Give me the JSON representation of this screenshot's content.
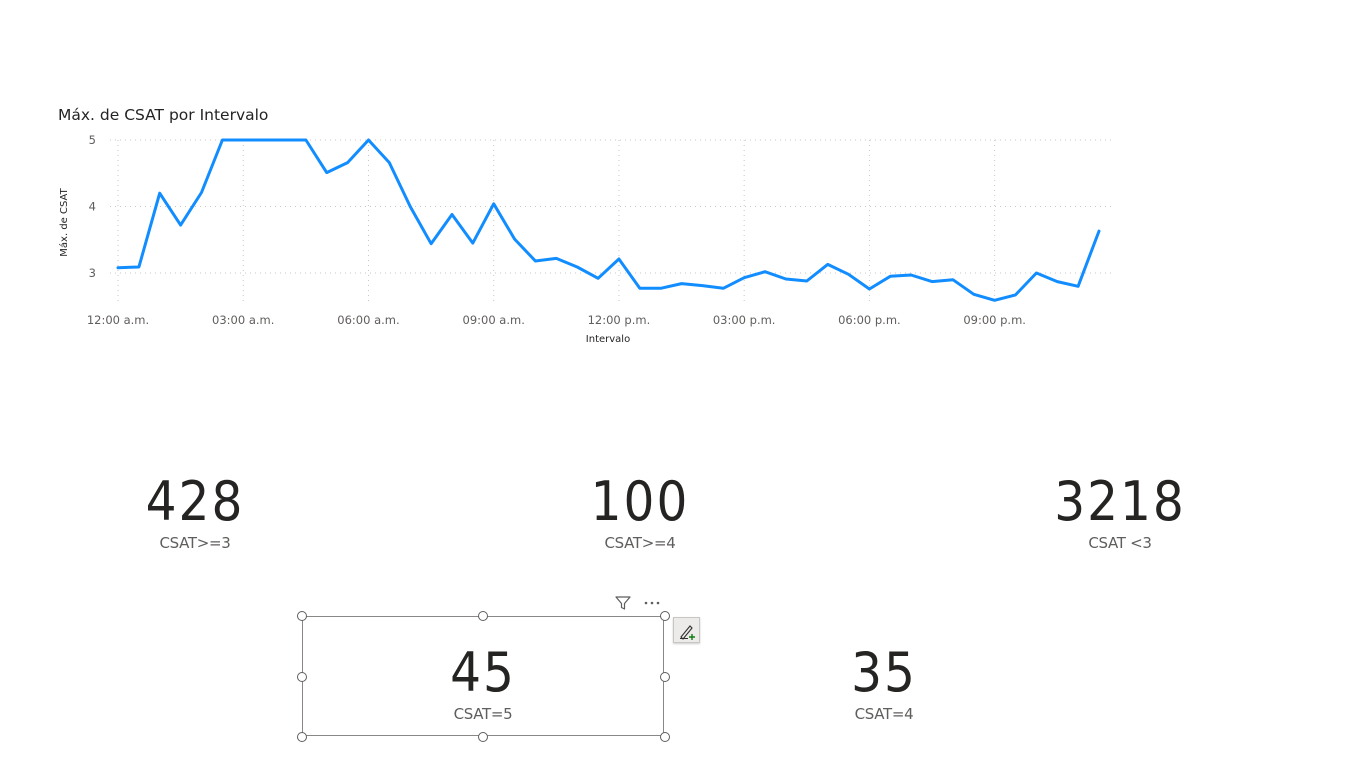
{
  "chart": {
    "title": "Máx. de CSAT por Intervalo"
  },
  "chart_data": {
    "type": "line",
    "title": "Máx. de CSAT por Intervalo",
    "xlabel": "Intervalo",
    "ylabel": "Máx. de CSAT",
    "x_ticks": [
      "12:00 a.m.",
      "03:00 a.m.",
      "06:00 a.m.",
      "09:00 a.m.",
      "12:00 p.m.",
      "03:00 p.m.",
      "06:00 p.m.",
      "09:00 p.m."
    ],
    "y_ticks": [
      3,
      4,
      5
    ],
    "ylim": [
      2.55,
      5.0
    ],
    "grid": true,
    "color": "#118DFF",
    "series": [
      {
        "x": [
          "12:00 a.m.",
          "12:30 a.m.",
          "01:00 a.m.",
          "01:30 a.m.",
          "02:00 a.m.",
          "02:30 a.m.",
          "03:00 a.m.",
          "03:30 a.m.",
          "04:00 a.m.",
          "04:30 a.m.",
          "05:00 a.m.",
          "05:30 a.m.",
          "06:00 a.m.",
          "06:30 a.m.",
          "07:00 a.m.",
          "07:30 a.m.",
          "08:00 a.m.",
          "08:30 a.m.",
          "09:00 a.m.",
          "09:30 a.m.",
          "10:00 a.m.",
          "10:30 a.m.",
          "11:00 a.m.",
          "11:30 a.m.",
          "12:00 p.m.",
          "12:30 p.m.",
          "01:00 p.m.",
          "01:30 p.m.",
          "02:00 p.m.",
          "02:30 p.m.",
          "03:00 p.m.",
          "03:30 p.m.",
          "04:00 p.m.",
          "04:30 p.m.",
          "05:00 p.m.",
          "05:30 p.m.",
          "06:00 p.m.",
          "06:30 p.m.",
          "07:00 p.m.",
          "07:30 p.m.",
          "08:00 p.m.",
          "08:30 p.m.",
          "09:00 p.m.",
          "09:30 p.m.",
          "10:00 p.m.",
          "10:30 p.m.",
          "11:00 p.m.",
          "11:30 p.m."
        ],
        "values": [
          3.08,
          3.09,
          4.2,
          3.72,
          4.21,
          5.0,
          5.0,
          5.0,
          5.0,
          5.0,
          4.51,
          4.66,
          5.0,
          4.66,
          4.0,
          3.44,
          3.88,
          3.45,
          4.04,
          3.51,
          3.18,
          3.22,
          3.09,
          2.92,
          3.21,
          2.77,
          2.77,
          2.84,
          2.81,
          2.77,
          2.93,
          3.02,
          2.91,
          2.88,
          3.13,
          2.98,
          2.76,
          2.95,
          2.97,
          2.87,
          2.9,
          2.68,
          2.59,
          2.67,
          3.0,
          2.87,
          2.8,
          3.63
        ]
      }
    ]
  },
  "cards": [
    {
      "value": "428",
      "label": "CSAT>=3"
    },
    {
      "value": "100",
      "label": "CSAT>=4"
    },
    {
      "value": "3218",
      "label": "CSAT <3"
    },
    {
      "value": "45",
      "label": "CSAT=5"
    },
    {
      "value": "35",
      "label": "CSAT=4"
    }
  ],
  "visual_header": {
    "filter_icon": "filter-icon",
    "more_icon": "more-options-icon",
    "format_icon": "format-brush-icon"
  }
}
